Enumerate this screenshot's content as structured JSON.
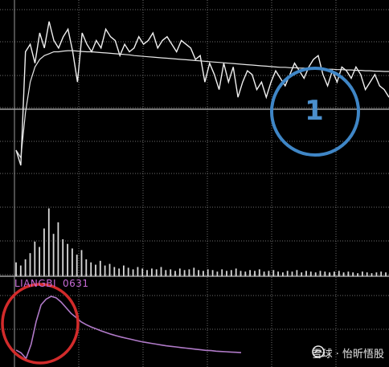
{
  "chart_data": [
    {
      "type": "line",
      "panel": "intraday-price",
      "series": [
        {
          "line_color": "#f0f0f0",
          "values": [
            62,
            58,
            88,
            90,
            85,
            93,
            89,
            96,
            91,
            89,
            92,
            94,
            88,
            80,
            93,
            90,
            88,
            91,
            89,
            94,
            92,
            91,
            87,
            90,
            88,
            89,
            92,
            90,
            91,
            93,
            89,
            91,
            92,
            90,
            88,
            91,
            90,
            89,
            86,
            87,
            80,
            85,
            82,
            78,
            85,
            80,
            84,
            76,
            80,
            83,
            82,
            78,
            80,
            76,
            80,
            83,
            81,
            79,
            82,
            85,
            83,
            81,
            84,
            86,
            87,
            82,
            79,
            83,
            80,
            84,
            83,
            81,
            84,
            82,
            78,
            80,
            82,
            79,
            78,
            76
          ]
        },
        {
          "line_color": "#e8e8e8",
          "values": [
            62,
            60,
            72,
            80,
            84,
            86,
            87,
            87.5,
            88,
            88,
            88.2,
            88.3,
            88.3,
            88.2,
            88.1,
            88,
            88,
            87.9,
            87.8,
            87.7,
            87.6,
            87.5,
            87.4,
            87.3,
            87.2,
            87,
            86.9,
            86.8,
            86.7,
            86.6,
            86.5,
            86.4,
            86.3,
            86.2,
            86.1,
            86,
            85.9,
            85.8,
            85.7,
            85.6,
            85.5,
            85.4,
            85.3,
            85.2,
            85.1,
            85,
            84.9,
            84.8,
            84.7,
            84.6,
            84.5,
            84.4,
            84.3,
            84.2,
            84.1,
            84,
            83.9,
            83.9,
            83.8,
            83.8,
            83.7,
            83.7,
            83.6,
            83.6,
            83.5,
            83.5,
            83.4,
            83.4,
            83.3,
            83.3,
            83.2,
            83.2,
            83.1,
            83.1,
            83,
            83,
            82.9,
            82.9,
            82.8,
            82.8
          ]
        }
      ]
    },
    {
      "type": "bar",
      "panel": "volume",
      "bar_color": "#d8d8d8",
      "values": [
        18,
        14,
        22,
        30,
        45,
        38,
        62,
        88,
        55,
        70,
        48,
        42,
        36,
        28,
        34,
        22,
        18,
        15,
        20,
        14,
        16,
        12,
        10,
        14,
        11,
        9,
        12,
        10,
        8,
        10,
        9,
        12,
        8,
        9,
        7,
        10,
        8,
        9,
        11,
        8,
        7,
        9,
        8,
        6,
        9,
        7,
        8,
        10,
        7,
        6,
        8,
        7,
        9,
        6,
        7,
        8,
        6,
        5,
        7,
        6,
        8,
        5,
        7,
        6,
        5,
        7,
        6,
        5,
        6,
        7,
        5,
        6,
        5,
        4,
        6,
        5,
        4,
        5,
        6,
        5
      ]
    },
    {
      "type": "line",
      "panel": "liangbi-indicator",
      "line_color": "#b07ac8",
      "values": [
        4,
        3,
        1,
        6,
        14,
        20,
        22,
        23,
        22.5,
        21,
        19,
        17,
        15.5,
        14,
        13,
        12.2,
        11.5,
        10.8,
        10.2,
        9.6,
        9.1,
        8.6,
        8.2,
        7.8,
        7.4,
        7,
        6.7,
        6.4,
        6.1,
        5.8,
        5.5,
        5.3,
        5.1,
        4.9,
        4.7,
        4.5,
        4.3,
        4.1,
        3.9,
        3.8,
        3.6,
        3.5,
        3.4,
        3.3,
        3.2,
        3.1
      ]
    }
  ],
  "indicator_label": "LIANGBI",
  "indicator_value": "0631",
  "annotation": {
    "number": "1",
    "circle_color": "#3f86c6",
    "red_circle_color": "#d22b2b"
  },
  "watermark": "雪球 · 怡昕悟股",
  "grid_color": "#6e6e6e"
}
